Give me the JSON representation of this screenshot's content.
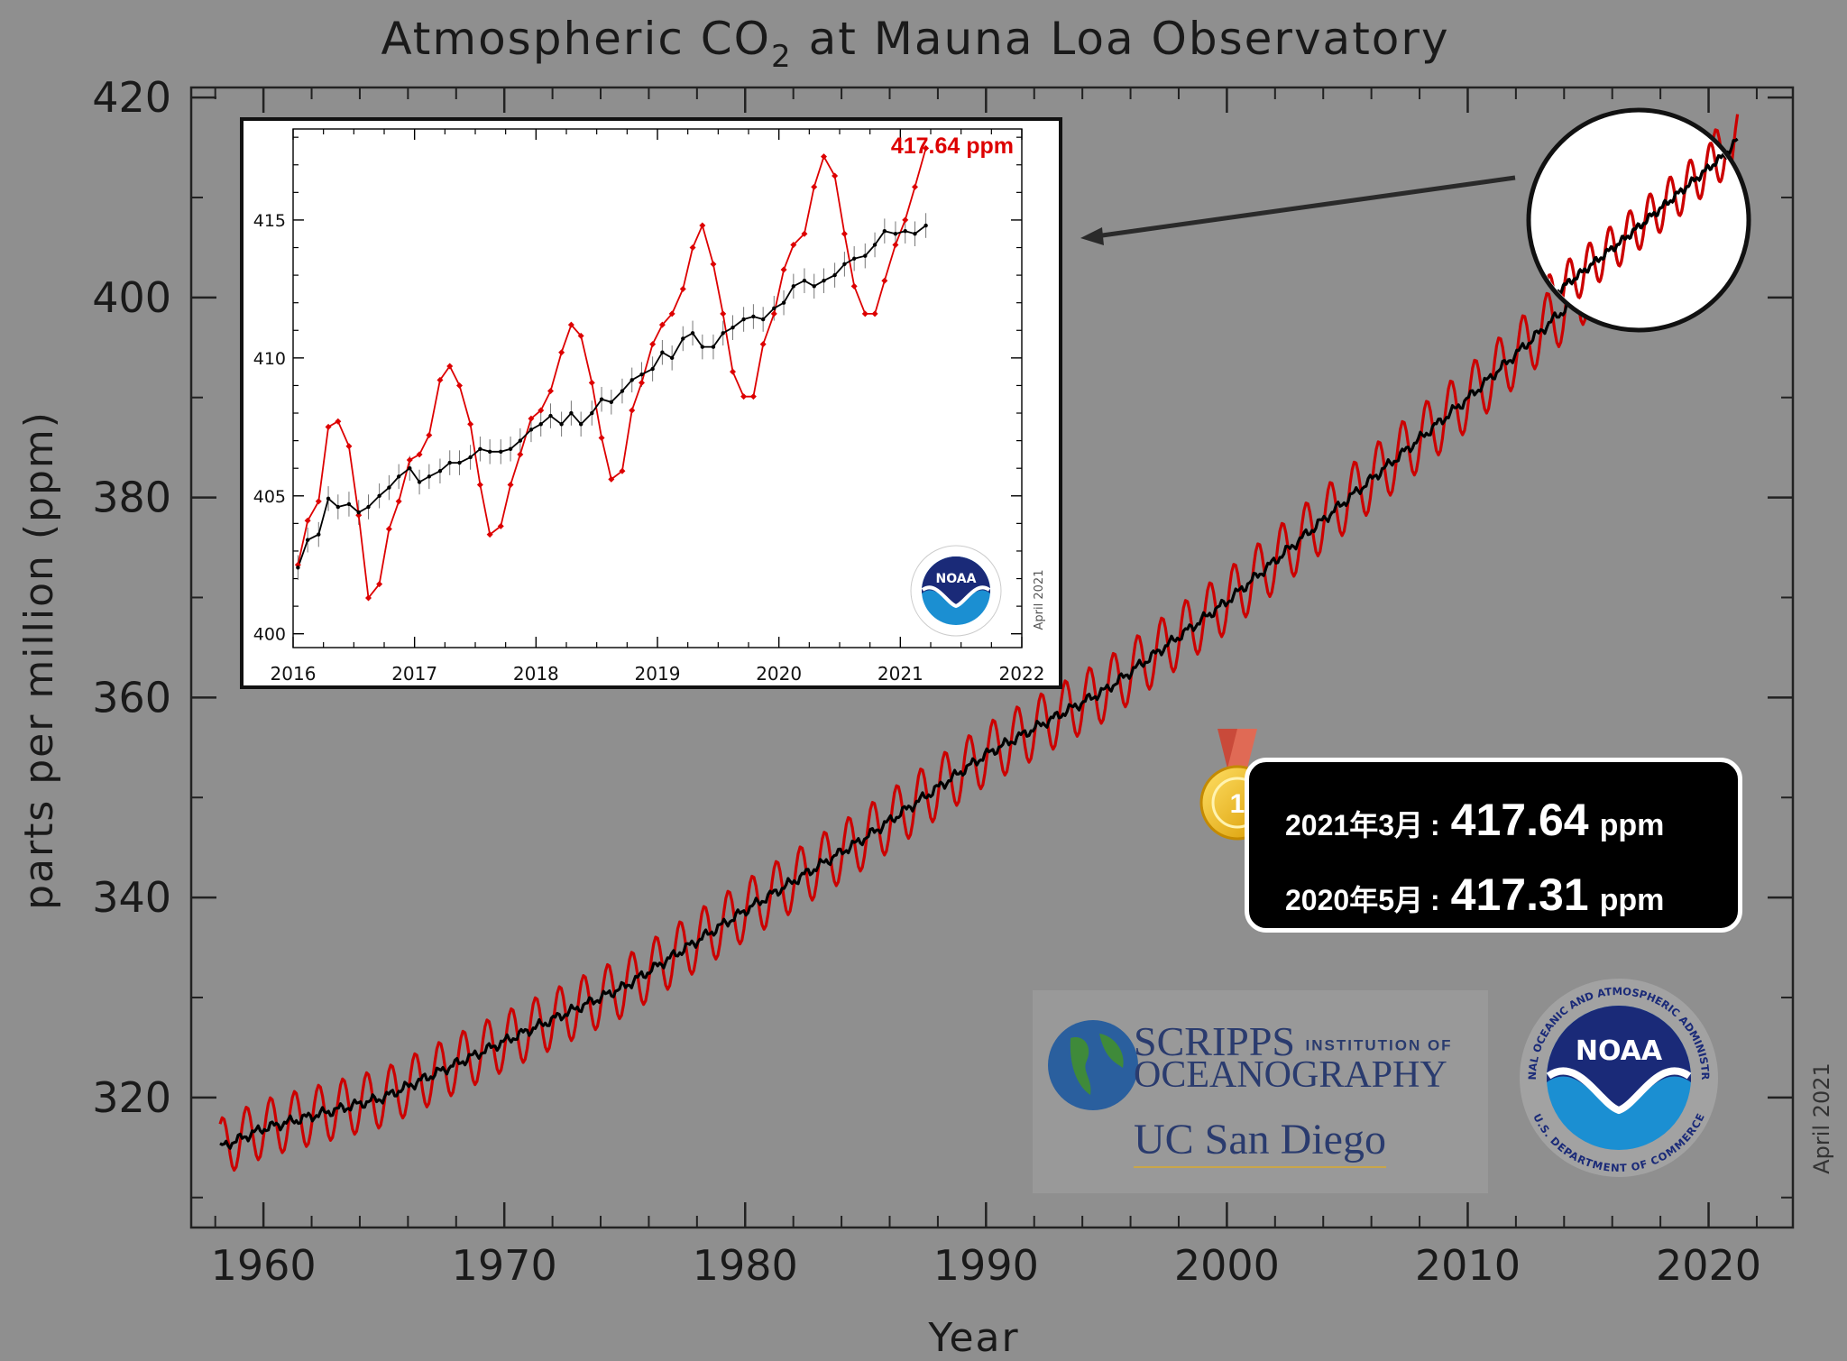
{
  "chart_data": [
    {
      "type": "line",
      "title": "Atmospheric CO",
      "title_subscript": "2",
      "title_suffix": " at Mauna Loa Observatory",
      "xlabel": "Year",
      "ylabel": "parts per million (ppm)",
      "xlim": [
        1957,
        2023.5
      ],
      "ylim": [
        307,
        421
      ],
      "xticks": [
        1960,
        1970,
        1980,
        1990,
        2000,
        2010,
        2020
      ],
      "yticks": [
        320,
        340,
        360,
        380,
        400,
        420
      ],
      "note": "April 2021",
      "series": [
        {
          "color": "#cc0000",
          "style": "monthly seasonal cycle",
          "x_range": [
            1958.2,
            2021.25
          ]
        },
        {
          "color": "#000000",
          "style": "deseasonalized trend",
          "x": [
            1958.2,
            1960,
            1965,
            1970,
            1975,
            1980,
            1985,
            1990,
            1995,
            2000,
            2005,
            2010,
            2015,
            2021.25
          ],
          "y": [
            315.0,
            316.9,
            320.0,
            325.6,
            331.1,
            338.7,
            346.0,
            354.3,
            360.8,
            369.6,
            379.8,
            389.9,
            401.0,
            415.8
          ]
        }
      ]
    },
    {
      "type": "line",
      "xlim": [
        2016,
        2022
      ],
      "ylim": [
        399.5,
        418.3
      ],
      "xticks": [
        2016,
        2017,
        2018,
        2019,
        2020,
        2021,
        2022
      ],
      "yticks": [
        400,
        405,
        410,
        415
      ],
      "note": "April 2021",
      "annotation": "417.64 ppm",
      "series": [
        {
          "color": "#dd0000",
          "x": [
            2016.04,
            2016.12,
            2016.21,
            2016.29,
            2016.37,
            2016.46,
            2016.54,
            2016.62,
            2016.71,
            2016.79,
            2016.87,
            2016.96,
            2017.04,
            2017.12,
            2017.21,
            2017.29,
            2017.37,
            2017.46,
            2017.54,
            2017.62,
            2017.71,
            2017.79,
            2017.87,
            2017.96,
            2018.04,
            2018.12,
            2018.21,
            2018.29,
            2018.37,
            2018.46,
            2018.54,
            2018.62,
            2018.71,
            2018.79,
            2018.87,
            2018.96,
            2019.04,
            2019.12,
            2019.21,
            2019.29,
            2019.37,
            2019.46,
            2019.54,
            2019.62,
            2019.71,
            2019.79,
            2019.87,
            2019.96,
            2020.04,
            2020.12,
            2020.21,
            2020.29,
            2020.37,
            2020.46,
            2020.54,
            2020.62,
            2020.71,
            2020.79,
            2020.87,
            2020.96,
            2021.04,
            2021.12,
            2021.21
          ],
          "y": [
            402.5,
            404.1,
            404.8,
            407.5,
            407.7,
            406.8,
            404.3,
            401.3,
            401.8,
            403.8,
            404.8,
            406.3,
            406.5,
            407.2,
            409.2,
            409.7,
            409.0,
            407.6,
            405.4,
            403.6,
            403.9,
            405.4,
            406.5,
            407.8,
            408.1,
            408.8,
            410.2,
            411.2,
            410.8,
            409.1,
            407.1,
            405.6,
            405.9,
            408.1,
            409.1,
            410.5,
            411.2,
            411.6,
            412.5,
            414.0,
            414.8,
            413.4,
            411.6,
            409.5,
            408.6,
            408.6,
            410.5,
            411.6,
            413.2,
            414.1,
            414.5,
            416.2,
            417.3,
            416.6,
            414.5,
            412.6,
            411.6,
            411.6,
            412.8,
            414.1,
            415.0,
            416.2,
            417.6
          ]
        },
        {
          "color": "#000000",
          "x": [
            2016.04,
            2016.12,
            2016.21,
            2016.29,
            2016.37,
            2016.46,
            2016.54,
            2016.62,
            2016.71,
            2016.79,
            2016.87,
            2016.96,
            2017.04,
            2017.12,
            2017.21,
            2017.29,
            2017.37,
            2017.46,
            2017.54,
            2017.62,
            2017.71,
            2017.79,
            2017.87,
            2017.96,
            2018.04,
            2018.12,
            2018.21,
            2018.29,
            2018.37,
            2018.46,
            2018.54,
            2018.62,
            2018.71,
            2018.79,
            2018.87,
            2018.96,
            2019.04,
            2019.12,
            2019.21,
            2019.29,
            2019.37,
            2019.46,
            2019.54,
            2019.62,
            2019.71,
            2019.79,
            2019.87,
            2019.96,
            2020.04,
            2020.12,
            2020.21,
            2020.29,
            2020.37,
            2020.46,
            2020.54,
            2020.62,
            2020.71,
            2020.79,
            2020.87,
            2020.96,
            2021.04,
            2021.12,
            2021.21
          ],
          "y": [
            402.4,
            403.4,
            403.6,
            404.9,
            404.6,
            404.7,
            404.4,
            404.6,
            405.0,
            405.3,
            405.7,
            406.0,
            405.5,
            405.7,
            405.9,
            406.2,
            406.2,
            406.4,
            406.7,
            406.6,
            406.6,
            406.7,
            407.0,
            407.4,
            407.6,
            407.9,
            407.6,
            408.0,
            407.6,
            408.0,
            408.5,
            408.4,
            408.8,
            409.2,
            409.4,
            409.6,
            410.2,
            410.0,
            410.7,
            410.9,
            410.4,
            410.4,
            410.9,
            411.1,
            411.4,
            411.5,
            411.4,
            411.8,
            412.0,
            412.6,
            412.8,
            412.6,
            412.8,
            413.0,
            413.4,
            413.6,
            413.7,
            414.1,
            414.6,
            414.5,
            414.6,
            414.5,
            414.8
          ]
        }
      ]
    }
  ],
  "badge": {
    "rows": [
      {
        "date": "2021年3月",
        "colon": ":",
        "value": "417.64",
        "unit": "ppm"
      },
      {
        "date": "2020年5月",
        "colon": ":",
        "value": "417.31",
        "unit": "ppm"
      }
    ],
    "medal_number": "1"
  },
  "logos": {
    "scripps_line1": "SCRIPPS",
    "scripps_line1_suffix": "INSTITUTION OF",
    "scripps_line2": "OCEANOGRAPHY",
    "ucsd": "UC San Diego",
    "noaa_small": "NOAA",
    "noaa_ring_top": "NATIONAL OCEANIC AND ATMOSPHERIC ADMINISTRATION",
    "noaa_ring_bottom": "U.S. DEPARTMENT OF COMMERCE"
  },
  "colors": {
    "background": "#8f8f8f",
    "monthly": "#cc0000",
    "trend": "#000000",
    "noaa_blue": "#1b8fd2",
    "noaa_navy": "#1a2a78"
  }
}
